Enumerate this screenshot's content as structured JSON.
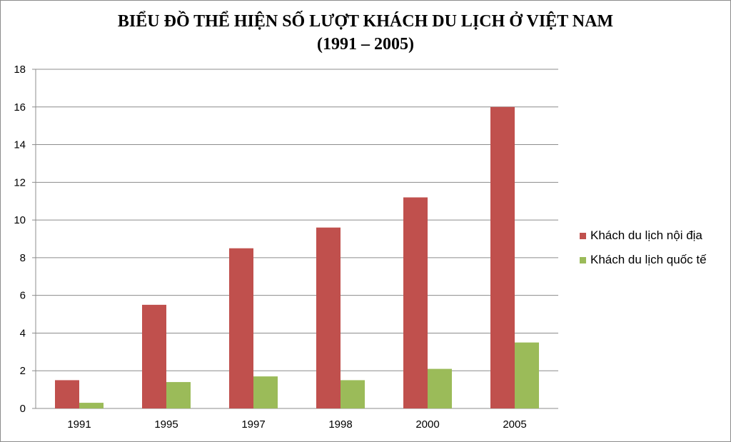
{
  "chart_data": {
    "type": "bar",
    "title": "BIỂU ĐỒ THỂ HIỆN SỐ LƯỢT KHÁCH DU LỊCH Ở VIỆT NAM",
    "subtitle": "(1991 – 2005)",
    "categories": [
      "1991",
      "1995",
      "1997",
      "1998",
      "2000",
      "2005"
    ],
    "series": [
      {
        "name": "Khách du lịch nội địa",
        "color": "#c0504d",
        "values": [
          1.5,
          5.5,
          8.5,
          9.6,
          11.2,
          16.0
        ]
      },
      {
        "name": "Khách du lịch quốc tế",
        "color": "#9bbb59",
        "values": [
          0.3,
          1.4,
          1.7,
          1.5,
          2.1,
          3.5
        ]
      }
    ],
    "ylim": [
      0,
      18
    ],
    "yticks": [
      "0",
      "2",
      "4",
      "6",
      "8",
      "10",
      "12",
      "14",
      "16",
      "18"
    ],
    "grid": true,
    "legend_position": "right"
  }
}
